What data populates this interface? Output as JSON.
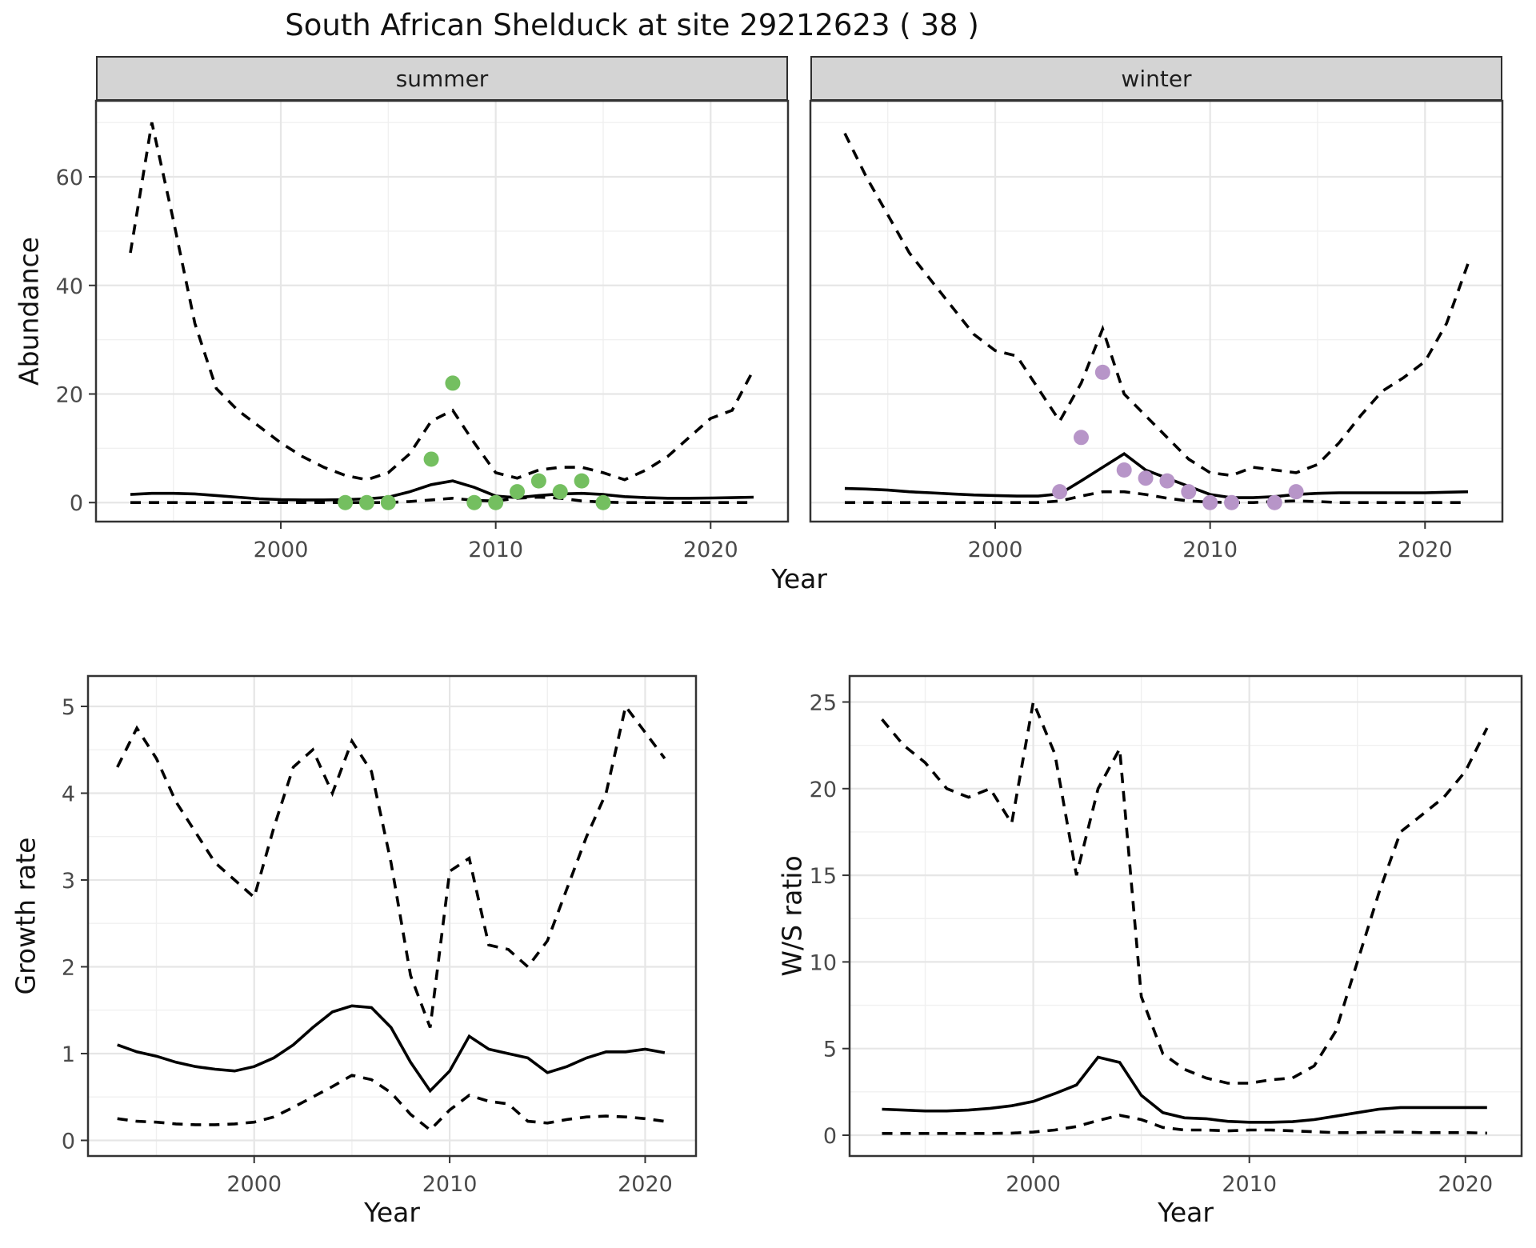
{
  "title": "South African Shelduck at site 29212623 ( 38 )",
  "axes": {
    "abundance_label": "Abundance",
    "growth_label": "Growth rate",
    "ws_label": "W/S ratio",
    "year_label": "Year"
  },
  "facets": [
    {
      "label": "summer"
    },
    {
      "label": "winter"
    }
  ],
  "colors": {
    "summer_points": "#74bf60",
    "winter_points": "#b795c8",
    "line": "#000000",
    "strip_bg": "#d4d4d4",
    "panel_border": "#333333",
    "grid_major": "#e6e6e6",
    "grid_minor": "#f0f0f0",
    "tick": "#333333"
  },
  "chart_data": [
    {
      "id": "abundance-summer",
      "type": "line",
      "title": "summer",
      "xlabel": "Year",
      "ylabel": "Abundance",
      "xlim": [
        1991.4,
        2023.6
      ],
      "ylim": [
        -3.5,
        74
      ],
      "xticks": [
        2000,
        2010,
        2020
      ],
      "yticks": [
        0,
        20,
        40,
        60
      ],
      "xticks_minor": [
        1995,
        2005,
        2015
      ],
      "yticks_minor": [
        10,
        30,
        50,
        70
      ],
      "x": [
        1993,
        1994,
        1995,
        1996,
        1997,
        1998,
        1999,
        2000,
        2001,
        2002,
        2003,
        2004,
        2005,
        2006,
        2007,
        2008,
        2009,
        2010,
        2011,
        2012,
        2013,
        2014,
        2015,
        2016,
        2017,
        2018,
        2019,
        2020,
        2021,
        2022
      ],
      "series": [
        {
          "name": "median",
          "style": "solid",
          "values": [
            1.5,
            1.7,
            1.7,
            1.6,
            1.3,
            1.0,
            0.7,
            0.55,
            0.5,
            0.5,
            0.55,
            0.7,
            1.0,
            2.0,
            3.3,
            4.0,
            2.8,
            1.2,
            0.9,
            1.3,
            1.6,
            1.7,
            1.5,
            1.1,
            0.9,
            0.8,
            0.8,
            0.85,
            0.9,
            1.0
          ]
        },
        {
          "name": "upper-ci",
          "style": "dashed",
          "values": [
            46,
            70,
            52,
            33,
            21,
            17,
            14,
            11,
            8.5,
            6.5,
            5,
            4.2,
            5.5,
            9,
            15,
            17,
            11,
            5.5,
            4.5,
            6,
            6.5,
            6.5,
            5.5,
            4.2,
            6,
            8.5,
            12,
            15.5,
            17,
            24.5
          ]
        },
        {
          "name": "lower-ci",
          "style": "dashed",
          "values": [
            0,
            0,
            0,
            0,
            0,
            0,
            0,
            0,
            0,
            0,
            0,
            0,
            0,
            0.2,
            0.5,
            0.8,
            0.4,
            0.3,
            0.8,
            1.0,
            0.8,
            0.3,
            0.1,
            0,
            0,
            0,
            0,
            0,
            0,
            0
          ]
        }
      ],
      "points": {
        "name": "summer-observed",
        "color": "#74bf60",
        "xy": [
          [
            2003,
            0
          ],
          [
            2004,
            0
          ],
          [
            2005,
            0
          ],
          [
            2007,
            8
          ],
          [
            2008,
            22
          ],
          [
            2009,
            0
          ],
          [
            2010,
            0
          ],
          [
            2011,
            2
          ],
          [
            2012,
            4
          ],
          [
            2013,
            2
          ],
          [
            2014,
            4
          ],
          [
            2015,
            0
          ]
        ]
      }
    },
    {
      "id": "abundance-winter",
      "type": "line",
      "title": "winter",
      "xlabel": "Year",
      "ylabel": "Abundance",
      "xlim": [
        1991.4,
        2023.6
      ],
      "ylim": [
        -3.5,
        74
      ],
      "xticks": [
        2000,
        2010,
        2020
      ],
      "yticks": [
        0,
        20,
        40,
        60
      ],
      "xticks_minor": [
        1995,
        2005,
        2015
      ],
      "yticks_minor": [
        10,
        30,
        50,
        70
      ],
      "x": [
        1993,
        1994,
        1995,
        1996,
        1997,
        1998,
        1999,
        2000,
        2001,
        2002,
        2003,
        2004,
        2005,
        2006,
        2007,
        2008,
        2009,
        2010,
        2011,
        2012,
        2013,
        2014,
        2015,
        2016,
        2017,
        2018,
        2019,
        2020,
        2021,
        2022
      ],
      "series": [
        {
          "name": "median",
          "style": "solid",
          "values": [
            2.6,
            2.5,
            2.3,
            2.0,
            1.8,
            1.6,
            1.4,
            1.3,
            1.2,
            1.2,
            1.6,
            4.0,
            6.5,
            9.0,
            6.0,
            4.5,
            3.0,
            1.5,
            0.9,
            0.9,
            1.1,
            1.5,
            1.7,
            1.8,
            1.8,
            1.8,
            1.8,
            1.8,
            1.9,
            2.0
          ]
        },
        {
          "name": "upper-ci",
          "style": "dashed",
          "values": [
            68,
            60,
            53,
            46,
            41,
            36,
            31,
            28,
            27,
            21,
            15,
            22,
            32,
            20,
            16,
            12,
            8,
            5.5,
            5,
            6.5,
            6,
            5.5,
            7,
            11,
            16,
            20.5,
            23,
            26,
            33,
            44
          ]
        },
        {
          "name": "lower-ci",
          "style": "dashed",
          "values": [
            0,
            0,
            0,
            0,
            0,
            0,
            0,
            0,
            0,
            0,
            0.3,
            1.2,
            2.0,
            2.0,
            1.5,
            0.8,
            0.3,
            0.1,
            0,
            0,
            0.2,
            0.3,
            0.2,
            0,
            0,
            0,
            0,
            0,
            0,
            0
          ]
        }
      ],
      "points": {
        "name": "winter-observed",
        "color": "#b795c8",
        "xy": [
          [
            2003,
            2
          ],
          [
            2004,
            12
          ],
          [
            2005,
            24
          ],
          [
            2006,
            6
          ],
          [
            2007,
            4.5
          ],
          [
            2008,
            4
          ],
          [
            2009,
            2
          ],
          [
            2010,
            0
          ],
          [
            2011,
            0
          ],
          [
            2013,
            0
          ],
          [
            2014,
            2
          ]
        ]
      }
    },
    {
      "id": "growth-rate",
      "type": "line",
      "title": "Growth rate",
      "xlabel": "Year",
      "ylabel": "Growth rate",
      "xlim": [
        1991.5,
        2022.6
      ],
      "ylim": [
        -0.18,
        5.35
      ],
      "xticks": [
        2000,
        2010,
        2020
      ],
      "yticks": [
        0,
        1,
        2,
        3,
        4,
        5
      ],
      "xticks_minor": [
        1995,
        2005,
        2015
      ],
      "yticks_minor": [
        0.5,
        1.5,
        2.5,
        3.5,
        4.5
      ],
      "x": [
        1993,
        1994,
        1995,
        1996,
        1997,
        1998,
        1999,
        2000,
        2001,
        2002,
        2003,
        2004,
        2005,
        2006,
        2007,
        2008,
        2009,
        2010,
        2011,
        2012,
        2013,
        2014,
        2015,
        2016,
        2017,
        2018,
        2019,
        2020,
        2021
      ],
      "series": [
        {
          "name": "median",
          "style": "solid",
          "values": [
            1.1,
            1.02,
            0.97,
            0.9,
            0.85,
            0.82,
            0.8,
            0.85,
            0.95,
            1.1,
            1.3,
            1.48,
            1.55,
            1.53,
            1.3,
            0.9,
            0.57,
            0.8,
            1.2,
            1.05,
            1.0,
            0.95,
            0.78,
            0.85,
            0.95,
            1.02,
            1.02,
            1.05,
            1.01
          ]
        },
        {
          "name": "upper-ci",
          "style": "dashed",
          "values": [
            4.3,
            4.75,
            4.4,
            3.9,
            3.55,
            3.2,
            3.0,
            2.8,
            3.6,
            4.3,
            4.5,
            4.0,
            4.6,
            4.25,
            3.2,
            1.9,
            1.3,
            3.1,
            3.25,
            2.25,
            2.2,
            2.0,
            2.3,
            2.9,
            3.5,
            4.0,
            5.0,
            4.7,
            4.4
          ]
        },
        {
          "name": "lower-ci",
          "style": "dashed",
          "values": [
            0.25,
            0.22,
            0.21,
            0.19,
            0.18,
            0.18,
            0.19,
            0.21,
            0.27,
            0.38,
            0.5,
            0.62,
            0.75,
            0.7,
            0.55,
            0.3,
            0.12,
            0.35,
            0.52,
            0.45,
            0.42,
            0.22,
            0.2,
            0.24,
            0.27,
            0.28,
            0.27,
            0.25,
            0.22
          ]
        }
      ]
    },
    {
      "id": "ws-ratio",
      "type": "line",
      "title": "W/S ratio",
      "xlabel": "Year",
      "ylabel": "W/S ratio",
      "xlim": [
        1991.5,
        2022.6
      ],
      "ylim": [
        -1.2,
        26.5
      ],
      "xticks": [
        2000,
        2010,
        2020
      ],
      "yticks": [
        0,
        5,
        10,
        15,
        20,
        25
      ],
      "xticks_minor": [
        1995,
        2005,
        2015
      ],
      "yticks_minor": [
        2.5,
        7.5,
        12.5,
        17.5,
        22.5
      ],
      "x": [
        1993,
        1994,
        1995,
        1996,
        1997,
        1998,
        1999,
        2000,
        2001,
        2002,
        2003,
        2004,
        2005,
        2006,
        2007,
        2008,
        2009,
        2010,
        2011,
        2012,
        2013,
        2014,
        2015,
        2016,
        2017,
        2018,
        2019,
        2020,
        2021
      ],
      "series": [
        {
          "name": "median",
          "style": "solid",
          "values": [
            1.5,
            1.45,
            1.4,
            1.4,
            1.45,
            1.55,
            1.7,
            1.95,
            2.4,
            2.9,
            4.5,
            4.2,
            2.3,
            1.3,
            1.0,
            0.95,
            0.8,
            0.75,
            0.75,
            0.78,
            0.9,
            1.1,
            1.3,
            1.5,
            1.6,
            1.6,
            1.6,
            1.6,
            1.6
          ]
        },
        {
          "name": "upper-ci",
          "style": "dashed",
          "values": [
            24,
            22.5,
            21.5,
            20,
            19.5,
            20,
            18,
            25,
            22,
            15,
            20,
            22.3,
            8,
            4.7,
            3.8,
            3.3,
            3.0,
            3.0,
            3.2,
            3.3,
            4.0,
            6.0,
            10,
            14,
            17.5,
            18.5,
            19.5,
            21,
            23.5
          ]
        },
        {
          "name": "lower-ci",
          "style": "dashed",
          "values": [
            0.1,
            0.1,
            0.1,
            0.1,
            0.1,
            0.1,
            0.12,
            0.18,
            0.3,
            0.5,
            0.85,
            1.15,
            0.9,
            0.45,
            0.3,
            0.3,
            0.25,
            0.3,
            0.3,
            0.25,
            0.2,
            0.15,
            0.15,
            0.18,
            0.18,
            0.15,
            0.15,
            0.15,
            0.12
          ]
        }
      ]
    }
  ]
}
